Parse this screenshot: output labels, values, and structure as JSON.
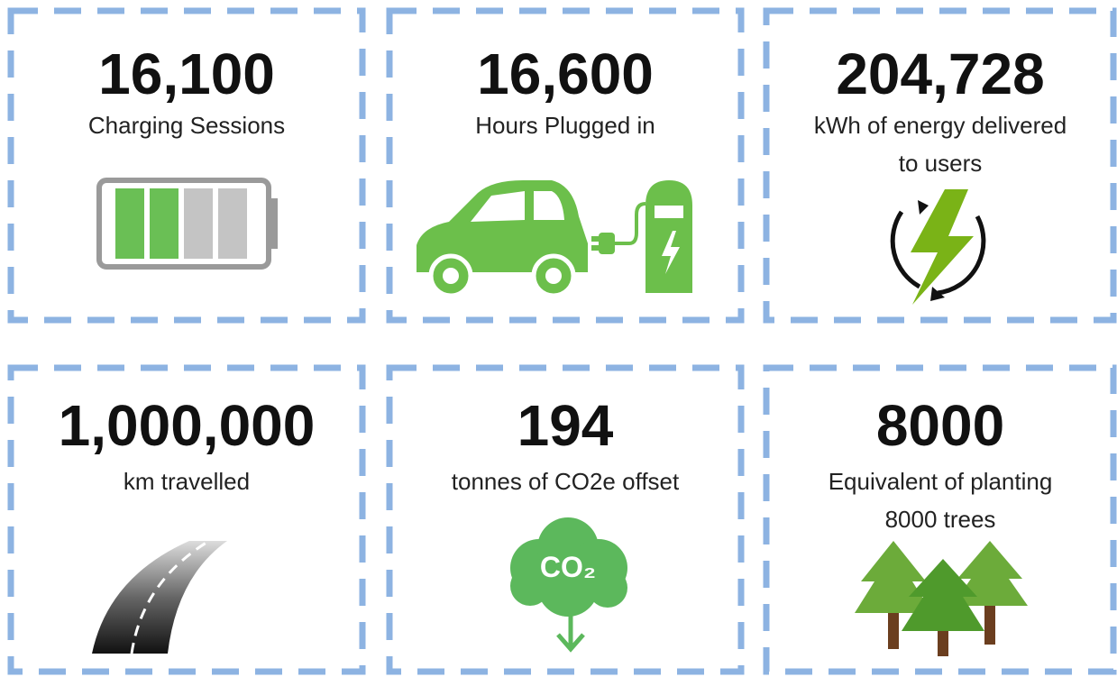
{
  "cards": [
    {
      "value": "16,100",
      "label": "Charging Sessions"
    },
    {
      "value": "16,600",
      "label": "Hours Plugged in"
    },
    {
      "value": "204,728",
      "label": "kWh of energy delivered to users"
    },
    {
      "value": "1,000,000",
      "label": "km travelled"
    },
    {
      "value": "194",
      "label": "tonnes of CO2e offset",
      "icon_text": "CO₂"
    },
    {
      "value": "8000",
      "label": "Equivalent of planting 8000 trees"
    }
  ]
}
